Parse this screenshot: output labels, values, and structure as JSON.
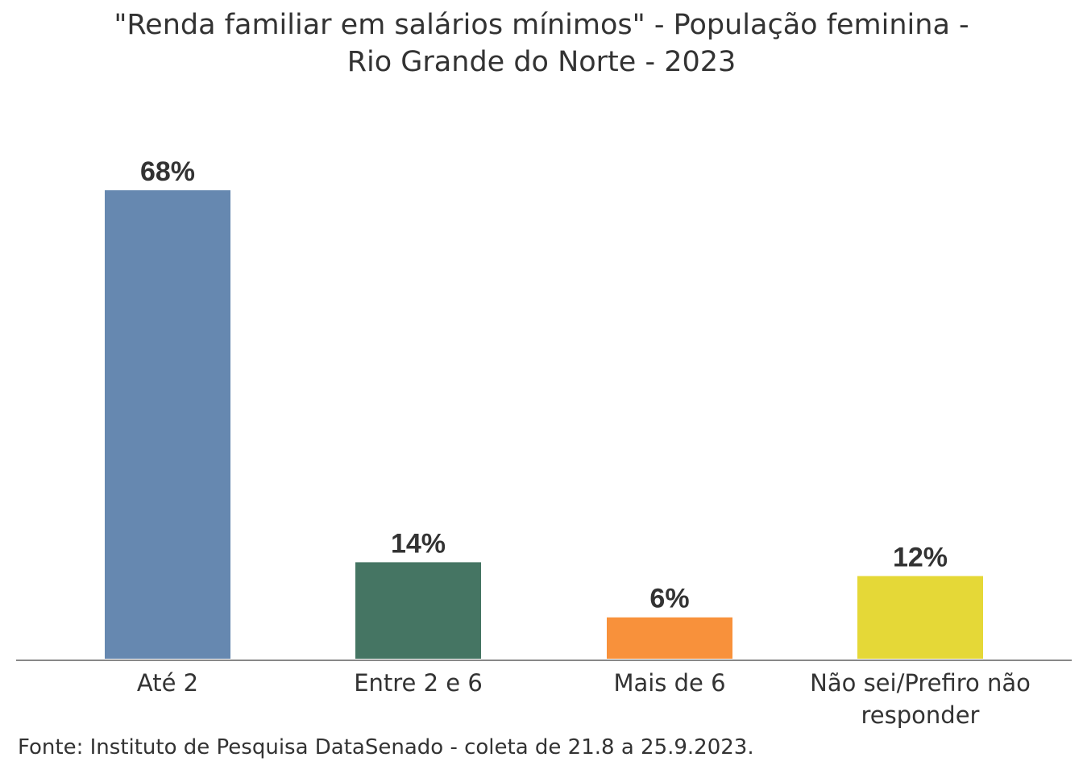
{
  "chart_data": {
    "type": "bar",
    "title_line1": "\"Renda familiar em salários mínimos\" - População feminina -",
    "title_line2": "Rio Grande do Norte - 2023",
    "categories": [
      [
        "Até 2"
      ],
      [
        "Entre 2 e 6"
      ],
      [
        "Mais de 6"
      ],
      [
        "Não sei/Prefiro não",
        "responder"
      ]
    ],
    "values": [
      68,
      14,
      6,
      12
    ],
    "value_labels": [
      "68%",
      "14%",
      "6%",
      "12%"
    ],
    "colors": [
      "#6688b0",
      "#457563",
      "#f8913b",
      "#e5d837"
    ],
    "ylim": [
      0,
      68
    ],
    "grid": false,
    "source": "Fonte: Instituto de Pesquisa DataSenado - coleta de 21.8 a 25.9.2023."
  }
}
